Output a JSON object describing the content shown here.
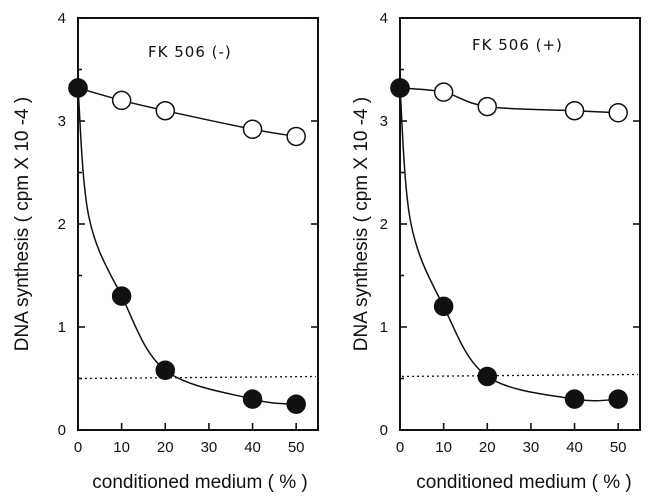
{
  "chart_data": [
    {
      "type": "line",
      "title": "FK 506 (-)",
      "xlabel": "conditioned medium ( % )",
      "ylabel": "DNA synthesis  ( cpm X 10 -4 )",
      "xlim": [
        0,
        55
      ],
      "ylim": [
        0,
        4
      ],
      "xticks": [
        0,
        10,
        20,
        30,
        40,
        50
      ],
      "yticks": [
        0,
        1,
        2,
        3,
        4
      ],
      "series": [
        {
          "marker": "open",
          "x": [
            0,
            10,
            20,
            40,
            50
          ],
          "values": [
            3.32,
            3.2,
            3.1,
            2.92,
            2.85
          ]
        },
        {
          "marker": "filled",
          "x": [
            0,
            10,
            20,
            40,
            50
          ],
          "values": [
            3.32,
            1.3,
            0.58,
            0.3,
            0.25
          ]
        }
      ],
      "reference_line": {
        "y": 0.5,
        "style": "dotted"
      }
    },
    {
      "type": "line",
      "title": "FK 506 (+)",
      "xlabel": "conditioned medium ( % )",
      "ylabel": "DNA synthesis  ( cpm X 10 -4 )",
      "xlim": [
        0,
        55
      ],
      "ylim": [
        0,
        4
      ],
      "xticks": [
        0,
        10,
        20,
        30,
        40,
        50
      ],
      "yticks": [
        0,
        1,
        2,
        3,
        4
      ],
      "series": [
        {
          "marker": "open",
          "x": [
            0,
            10,
            20,
            40,
            50
          ],
          "values": [
            3.32,
            3.28,
            3.14,
            3.1,
            3.08
          ]
        },
        {
          "marker": "filled",
          "x": [
            0,
            10,
            20,
            40,
            50
          ],
          "values": [
            3.32,
            1.2,
            0.52,
            0.3,
            0.3
          ]
        }
      ],
      "reference_line": {
        "y": 0.52,
        "style": "dotted"
      }
    }
  ]
}
